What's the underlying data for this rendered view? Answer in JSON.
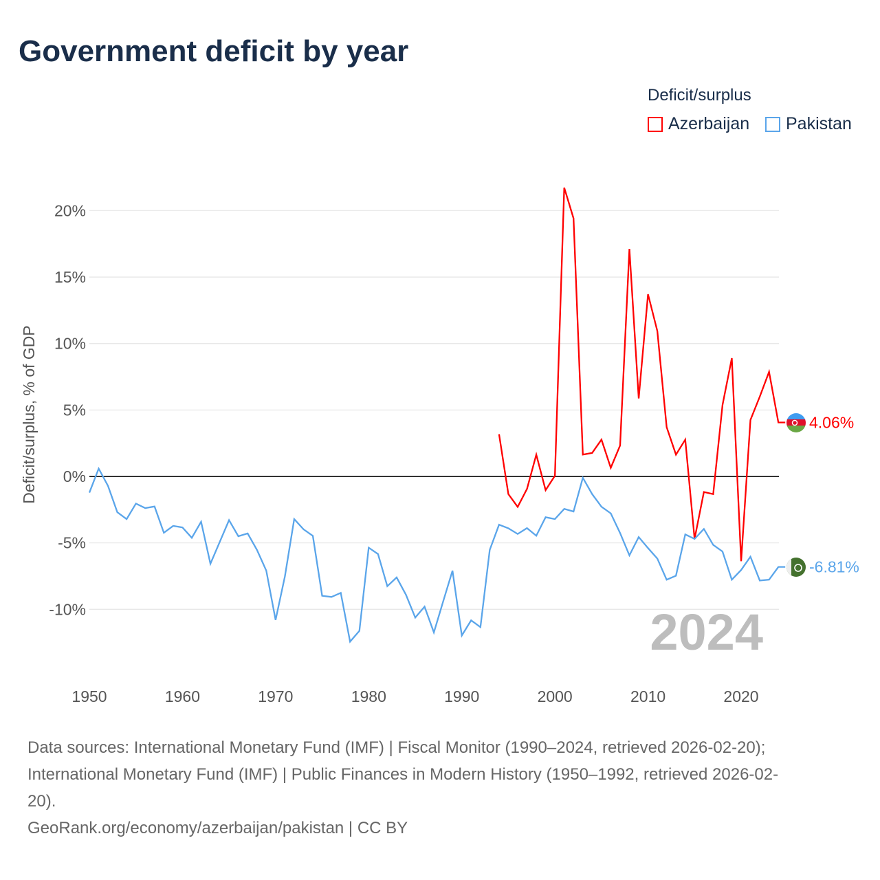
{
  "title": "Government deficit by year",
  "legend": {
    "title": "Deficit/surplus",
    "items": [
      {
        "name": "Azerbaijan",
        "color": "#ff0000"
      },
      {
        "name": "Pakistan",
        "color": "#5aa5ea"
      }
    ]
  },
  "watermark_year": "2024",
  "sources": {
    "line1": "Data sources: International Monetary Fund (IMF) | Fiscal Monitor (1990–2024, retrieved 2026-02-20);",
    "line2": "International Monetary Fund (IMF) | Public Finances in Modern History (1950–1992, retrieved 2026-02-",
    "line3": "20).",
    "line4": "GeoRank.org/economy/azerbaijan/pakistan | CC BY"
  },
  "chart_data": {
    "type": "line",
    "title": "Government deficit by year",
    "xlabel": "",
    "ylabel": "Deficit/surplus, % of GDP",
    "xlim": [
      1950,
      2024
    ],
    "ylim": [
      -14,
      23
    ],
    "x_ticks": [
      "1950",
      "1960",
      "1970",
      "1980",
      "1990",
      "2000",
      "2010",
      "2020"
    ],
    "y_ticks": [
      {
        "v": 20,
        "label": "20%"
      },
      {
        "v": 15,
        "label": "15%"
      },
      {
        "v": 10,
        "label": "10%"
      },
      {
        "v": 5,
        "label": "5%"
      },
      {
        "v": 0,
        "label": "0%"
      },
      {
        "v": -5,
        "label": "-5%"
      },
      {
        "v": -10,
        "label": "-10%"
      }
    ],
    "grid": true,
    "legend_position": "top-right",
    "series": [
      {
        "name": "Azerbaijan",
        "color": "#ff0000",
        "start_year": 1994,
        "end_label": "4.06%",
        "values": [
          3.18,
          -1.33,
          -2.29,
          -0.94,
          1.64,
          -1.03,
          0.05,
          21.73,
          19.42,
          1.64,
          1.77,
          2.77,
          0.65,
          2.33,
          17.12,
          5.87,
          13.71,
          10.94,
          3.71,
          1.64,
          2.77,
          -4.7,
          -1.17,
          -1.33,
          5.37,
          8.9,
          -6.38,
          4.25,
          6.0,
          7.87,
          4.06
        ]
      },
      {
        "name": "Pakistan",
        "color": "#5aa5ea",
        "start_year": 1950,
        "end_label": "-6.81%",
        "values": [
          -1.22,
          0.59,
          -0.71,
          -2.69,
          -3.21,
          -2.04,
          -2.38,
          -2.26,
          -4.24,
          -3.72,
          -3.84,
          -4.62,
          -3.41,
          -6.57,
          -4.93,
          -3.29,
          -4.5,
          -4.29,
          -5.53,
          -7.09,
          -10.8,
          -7.52,
          -3.21,
          -3.98,
          -4.47,
          -8.98,
          -9.07,
          -8.76,
          -12.43,
          -11.62,
          -5.36,
          -5.84,
          -8.26,
          -7.6,
          -8.9,
          -10.62,
          -9.8,
          -11.74,
          -9.4,
          -7.09,
          -11.97,
          -10.83,
          -11.34,
          -5.53,
          -3.63,
          -3.9,
          -4.33,
          -3.89,
          -4.46,
          -3.07,
          -3.21,
          -2.44,
          -2.64,
          -0.1,
          -1.33,
          -2.28,
          -2.78,
          -4.26,
          -5.94,
          -4.56,
          -5.39,
          -6.18,
          -7.77,
          -7.47,
          -4.36,
          -4.7,
          -3.95,
          -5.15,
          -5.65,
          -7.77,
          -7.04,
          -6.04,
          -7.83,
          -7.77,
          -6.81
        ]
      }
    ]
  }
}
